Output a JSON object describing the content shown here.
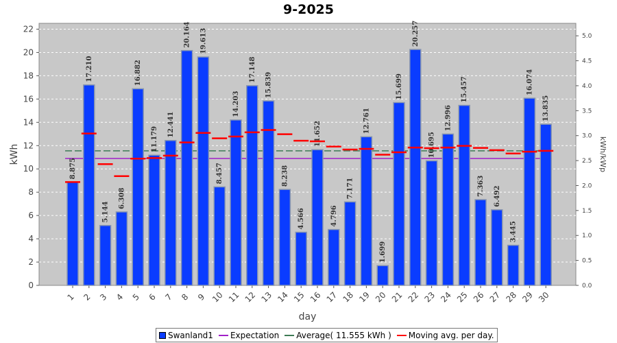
{
  "colors": {
    "bar": "#0a3cff",
    "bar_edge": "#8896b0",
    "expectation": "#a020c8",
    "average": "#3d7a55",
    "moving_avg": "#ff0000",
    "plot_bg": "#c8c8c8"
  },
  "chart_data": {
    "type": "bar",
    "title": "9-2025",
    "xlabel": "day",
    "ylabel": "kWh",
    "y2label": "kWh/kWp",
    "ylim": [
      0,
      22.5
    ],
    "y2lim": [
      0,
      5.25
    ],
    "yticks": [
      0,
      2,
      4,
      6,
      8,
      10,
      12,
      14,
      16,
      18,
      20,
      22
    ],
    "y2ticks": [
      "0.0",
      "0.5",
      "1.0",
      "1.5",
      "2.0",
      "2.5",
      "3.0",
      "3.5",
      "4.0",
      "4.5",
      "5.0"
    ],
    "grid": true,
    "legend_position": "bottom",
    "categories": [
      "1",
      "2",
      "3",
      "4",
      "5",
      "6",
      "7",
      "8",
      "9",
      "10",
      "11",
      "12",
      "13",
      "14",
      "15",
      "16",
      "17",
      "18",
      "19",
      "20",
      "21",
      "22",
      "23",
      "24",
      "25",
      "26",
      "27",
      "28",
      "29",
      "30"
    ],
    "series": [
      {
        "name": "Swanland1",
        "values": [
          8.875,
          17.21,
          5.144,
          6.308,
          16.882,
          11.179,
          12.441,
          20.164,
          19.613,
          8.457,
          14.203,
          17.148,
          15.839,
          8.238,
          4.566,
          11.652,
          4.796,
          7.171,
          12.761,
          1.699,
          15.699,
          20.257,
          10.695,
          12.996,
          15.457,
          7.363,
          6.492,
          3.445,
          16.074,
          13.835
        ],
        "labels": [
          "8.875",
          "17.210",
          "5.144",
          "6.308",
          "16.882",
          "11.179",
          "12.441",
          "20.164",
          "19.613",
          "8.457",
          "14.203",
          "17.148",
          "15.839",
          "8.238",
          "4.566",
          "11.652",
          "4.796",
          "7.171",
          "12.761",
          "1.699",
          "15.699",
          "20.257",
          "10.695",
          "12.996",
          "15.457",
          "7.363",
          "6.492",
          "3.445",
          "16.074",
          "13.835"
        ]
      },
      {
        "name": "Expectation",
        "value": 10.9
      },
      {
        "name": "Average( 11.555 kWh )",
        "value": 11.555
      },
      {
        "name": "Moving avg. per day.",
        "values": [
          8.875,
          13.04,
          10.41,
          9.38,
          10.88,
          10.93,
          11.14,
          12.27,
          13.09,
          12.63,
          12.78,
          13.14,
          13.34,
          12.98,
          12.42,
          12.37,
          11.92,
          11.66,
          11.72,
          11.22,
          11.43,
          11.83,
          11.78,
          11.83,
          11.98,
          11.8,
          11.61,
          11.32,
          11.48,
          11.55
        ]
      }
    ]
  }
}
